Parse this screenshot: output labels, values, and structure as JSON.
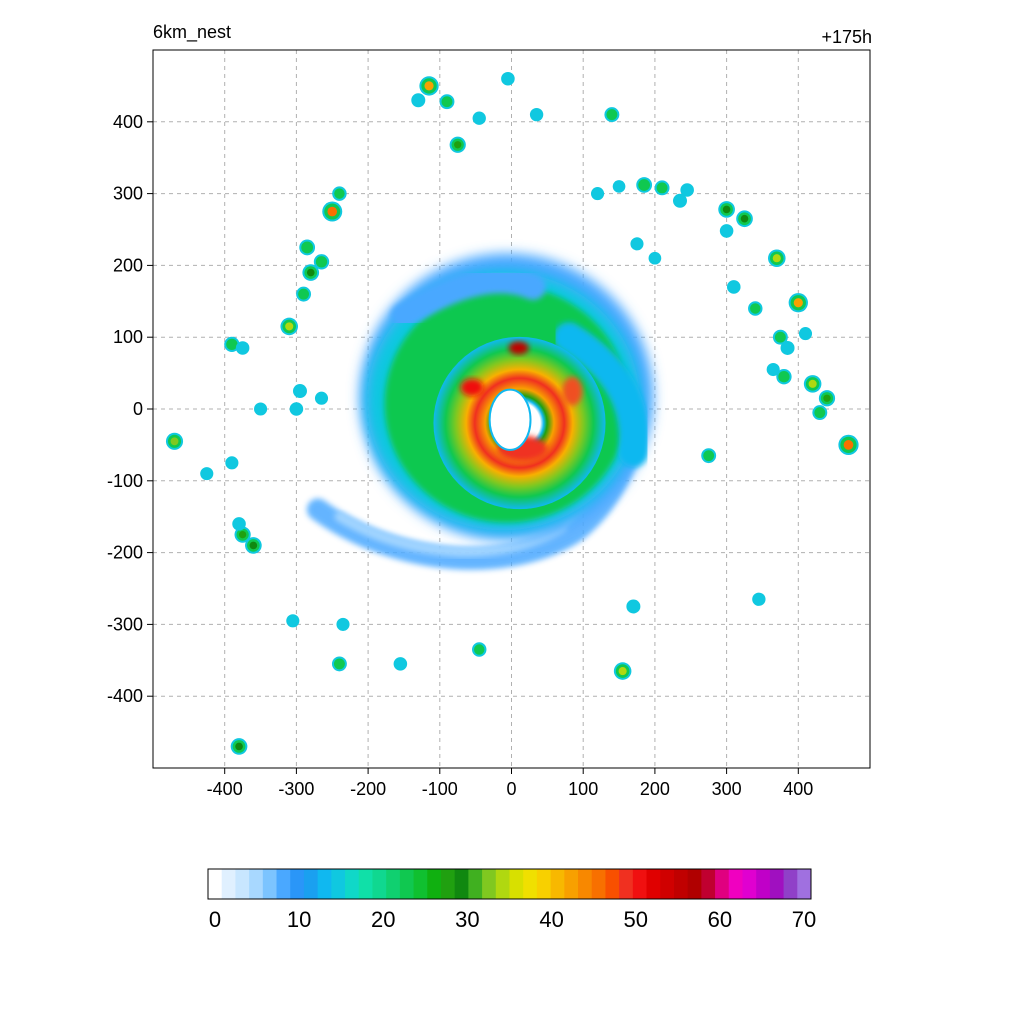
{
  "chart_data": {
    "type": "heatmap",
    "title_left": "6km_nest",
    "title_right": "+175h",
    "xlabel": "",
    "ylabel": "",
    "xlim": [
      -500,
      500
    ],
    "ylim": [
      -500,
      500
    ],
    "x_ticks": [
      -400,
      -300,
      -200,
      -100,
      0,
      100,
      200,
      300,
      400
    ],
    "y_ticks": [
      400,
      300,
      200,
      100,
      0,
      -100,
      -200,
      -300,
      -400
    ],
    "grid": true,
    "colorbar": {
      "min": 0,
      "max": 70,
      "tick_labels": [
        "0",
        "10",
        "20",
        "30",
        "40",
        "50",
        "60",
        "70"
      ],
      "tick_values": [
        0,
        10,
        20,
        30,
        40,
        50,
        60,
        70
      ],
      "colors": [
        "#ffffff",
        "#e0f0ff",
        "#c8e6ff",
        "#a8d8ff",
        "#7cc4ff",
        "#4aa8ff",
        "#2a96f8",
        "#1aa0f0",
        "#10b8f0",
        "#10c8e0",
        "#10d8c8",
        "#10e0a8",
        "#10d890",
        "#10d070",
        "#10c850",
        "#10c030",
        "#10b010",
        "#20a010",
        "#108810",
        "#40b020",
        "#80c820",
        "#b0d810",
        "#d8e000",
        "#f0e000",
        "#f8d000",
        "#f8b800",
        "#f8a000",
        "#f88800",
        "#f87000",
        "#f85000",
        "#f03020",
        "#f01010",
        "#e00000",
        "#d00000",
        "#c00000",
        "#b00000",
        "#c00030",
        "#e00080",
        "#f000c0",
        "#e000d0",
        "#c000c8",
        "#a010c0",
        "#9040c8",
        "#a070e0"
      ]
    },
    "features": {
      "storm_center": [
        0,
        0
      ],
      "eye_radius_km": 30,
      "eyewall_peak_value": 52,
      "outer_rain_band": "spiral",
      "scattered_cells": [
        {
          "x": -115,
          "y": 450,
          "v": 42
        },
        {
          "x": -90,
          "y": 428,
          "v": 22
        },
        {
          "x": -130,
          "y": 430,
          "v": 18
        },
        {
          "x": -75,
          "y": 368,
          "v": 28
        },
        {
          "x": -45,
          "y": 405,
          "v": 15
        },
        {
          "x": 35,
          "y": 410,
          "v": 15
        },
        {
          "x": 140,
          "y": 410,
          "v": 22
        },
        {
          "x": -5,
          "y": 460,
          "v": 16
        },
        {
          "x": -250,
          "y": 275,
          "v": 45
        },
        {
          "x": -240,
          "y": 300,
          "v": 20
        },
        {
          "x": -285,
          "y": 225,
          "v": 26
        },
        {
          "x": -280,
          "y": 190,
          "v": 30
        },
        {
          "x": -265,
          "y": 205,
          "v": 24
        },
        {
          "x": -290,
          "y": 160,
          "v": 22
        },
        {
          "x": -310,
          "y": 115,
          "v": 34
        },
        {
          "x": -390,
          "y": 90,
          "v": 24
        },
        {
          "x": -375,
          "y": 85,
          "v": 16
        },
        {
          "x": -470,
          "y": -45,
          "v": 32
        },
        {
          "x": -390,
          "y": -75,
          "v": 14
        },
        {
          "x": -425,
          "y": -90,
          "v": 14
        },
        {
          "x": -375,
          "y": -175,
          "v": 28
        },
        {
          "x": -360,
          "y": -190,
          "v": 30
        },
        {
          "x": -380,
          "y": -160,
          "v": 16
        },
        {
          "x": -380,
          "y": -470,
          "v": 30
        },
        {
          "x": -240,
          "y": -355,
          "v": 22
        },
        {
          "x": -155,
          "y": -355,
          "v": 16
        },
        {
          "x": -45,
          "y": -335,
          "v": 20
        },
        {
          "x": 155,
          "y": -365,
          "v": 34
        },
        {
          "x": 170,
          "y": -275,
          "v": 18
        },
        {
          "x": 275,
          "y": -65,
          "v": 22
        },
        {
          "x": 345,
          "y": -265,
          "v": 15
        },
        {
          "x": 185,
          "y": 312,
          "v": 26
        },
        {
          "x": 210,
          "y": 308,
          "v": 22
        },
        {
          "x": 235,
          "y": 290,
          "v": 18
        },
        {
          "x": 245,
          "y": 305,
          "v": 16
        },
        {
          "x": 300,
          "y": 278,
          "v": 30
        },
        {
          "x": 325,
          "y": 265,
          "v": 30
        },
        {
          "x": 300,
          "y": 248,
          "v": 16
        },
        {
          "x": 370,
          "y": 210,
          "v": 34
        },
        {
          "x": 400,
          "y": 148,
          "v": 42
        },
        {
          "x": 310,
          "y": 170,
          "v": 16
        },
        {
          "x": 340,
          "y": 140,
          "v": 20
        },
        {
          "x": 375,
          "y": 100,
          "v": 22
        },
        {
          "x": 385,
          "y": 85,
          "v": 18
        },
        {
          "x": 380,
          "y": 45,
          "v": 24
        },
        {
          "x": 420,
          "y": 35,
          "v": 34
        },
        {
          "x": 440,
          "y": 15,
          "v": 28
        },
        {
          "x": 430,
          "y": -5,
          "v": 22
        },
        {
          "x": 470,
          "y": -50,
          "v": 46
        },
        {
          "x": 365,
          "y": 55,
          "v": 14
        },
        {
          "x": 410,
          "y": 105,
          "v": 14
        },
        {
          "x": -235,
          "y": -300,
          "v": 14
        },
        {
          "x": -305,
          "y": -295,
          "v": 14
        },
        {
          "x": -295,
          "y": 25,
          "v": 18
        },
        {
          "x": -300,
          "y": 0,
          "v": 16
        },
        {
          "x": -350,
          "y": 0,
          "v": 14
        },
        {
          "x": -265,
          "y": 15,
          "v": 14
        },
        {
          "x": 175,
          "y": 230,
          "v": 14
        },
        {
          "x": 200,
          "y": 210,
          "v": 12
        },
        {
          "x": 120,
          "y": 300,
          "v": 14
        },
        {
          "x": 150,
          "y": 310,
          "v": 12
        }
      ]
    }
  }
}
